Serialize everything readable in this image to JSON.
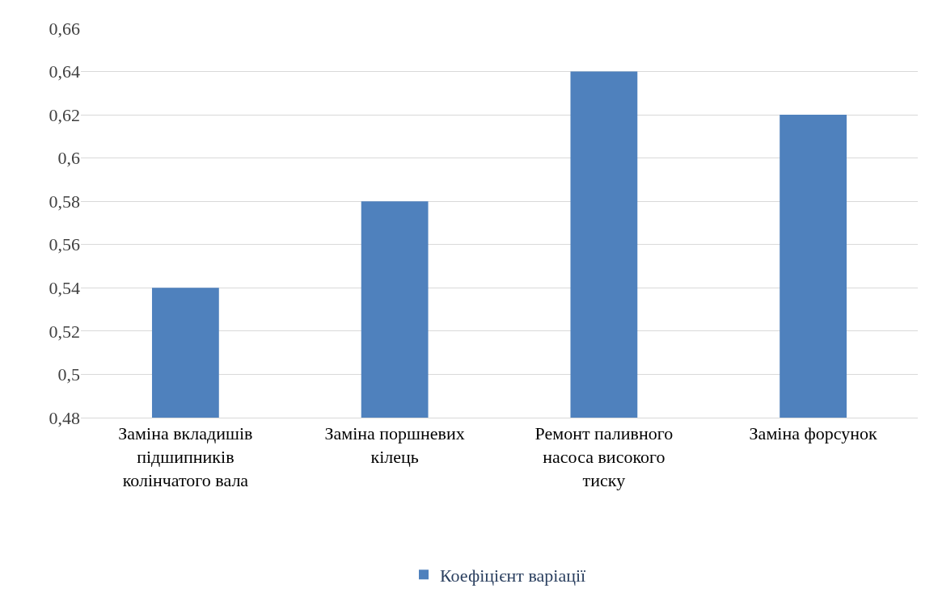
{
  "chart_data": {
    "type": "bar",
    "categories": [
      "Заміна вкладишів підшипників колінчатого вала",
      "Заміна поршневих кілець",
      "Ремонт паливного насоса високого тиску",
      "Заміна форсунок"
    ],
    "series": [
      {
        "name": "Коефіцієнт варіації",
        "color": "#4f81bd",
        "values": [
          0.54,
          0.58,
          0.64,
          0.62
        ]
      }
    ],
    "ylim": [
      0.48,
      0.66
    ],
    "yticks": [
      {
        "value": 0.48,
        "label": "0,48"
      },
      {
        "value": 0.5,
        "label": "0,5"
      },
      {
        "value": 0.52,
        "label": "0,52"
      },
      {
        "value": 0.54,
        "label": "0,54"
      },
      {
        "value": 0.56,
        "label": "0,56"
      },
      {
        "value": 0.58,
        "label": "0,58"
      },
      {
        "value": 0.6,
        "label": "0,6"
      },
      {
        "value": 0.62,
        "label": "0,62"
      },
      {
        "value": 0.64,
        "label": "0,64"
      },
      {
        "value": 0.66,
        "label": "0,66"
      }
    ],
    "grid": "y",
    "legend": "bottom"
  }
}
